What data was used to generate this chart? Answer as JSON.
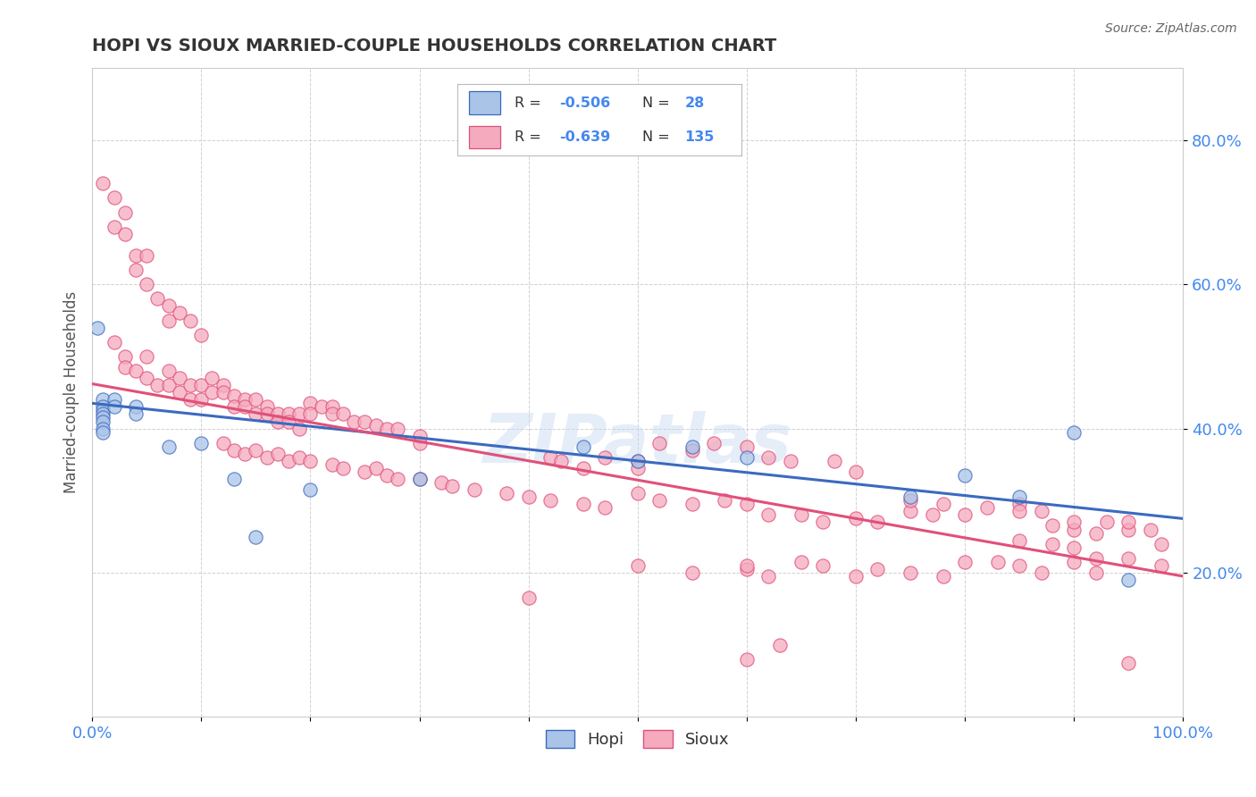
{
  "title": "HOPI VS SIOUX MARRIED-COUPLE HOUSEHOLDS CORRELATION CHART",
  "source": "Source: ZipAtlas.com",
  "ylabel": "Married-couple Households",
  "ytick_labels": [
    "20.0%",
    "40.0%",
    "60.0%",
    "80.0%"
  ],
  "ytick_values": [
    0.2,
    0.4,
    0.6,
    0.8
  ],
  "xlim": [
    0.0,
    1.0
  ],
  "ylim": [
    0.0,
    0.9
  ],
  "hopi_color": "#aac4e8",
  "sioux_color": "#f5aabe",
  "hopi_line_color": "#3b6abf",
  "sioux_line_color": "#e0507a",
  "legend_label_hopi_bottom": "Hopi",
  "legend_label_sioux_bottom": "Sioux",
  "watermark": "ZIPatlas",
  "background_color": "#ffffff",
  "grid_color": "#cccccc",
  "hopi_scatter": [
    [
      0.005,
      0.54
    ],
    [
      0.01,
      0.44
    ],
    [
      0.01,
      0.43
    ],
    [
      0.01,
      0.425
    ],
    [
      0.01,
      0.42
    ],
    [
      0.01,
      0.415
    ],
    [
      0.01,
      0.41
    ],
    [
      0.01,
      0.4
    ],
    [
      0.01,
      0.395
    ],
    [
      0.02,
      0.44
    ],
    [
      0.02,
      0.43
    ],
    [
      0.04,
      0.43
    ],
    [
      0.04,
      0.42
    ],
    [
      0.07,
      0.375
    ],
    [
      0.1,
      0.38
    ],
    [
      0.13,
      0.33
    ],
    [
      0.15,
      0.25
    ],
    [
      0.2,
      0.315
    ],
    [
      0.3,
      0.33
    ],
    [
      0.45,
      0.375
    ],
    [
      0.5,
      0.355
    ],
    [
      0.55,
      0.375
    ],
    [
      0.6,
      0.36
    ],
    [
      0.75,
      0.305
    ],
    [
      0.8,
      0.335
    ],
    [
      0.85,
      0.305
    ],
    [
      0.9,
      0.395
    ],
    [
      0.95,
      0.19
    ]
  ],
  "sioux_scatter": [
    [
      0.01,
      0.74
    ],
    [
      0.02,
      0.72
    ],
    [
      0.02,
      0.68
    ],
    [
      0.03,
      0.7
    ],
    [
      0.03,
      0.67
    ],
    [
      0.04,
      0.64
    ],
    [
      0.04,
      0.62
    ],
    [
      0.05,
      0.64
    ],
    [
      0.05,
      0.6
    ],
    [
      0.06,
      0.58
    ],
    [
      0.07,
      0.57
    ],
    [
      0.07,
      0.55
    ],
    [
      0.08,
      0.56
    ],
    [
      0.09,
      0.55
    ],
    [
      0.1,
      0.53
    ],
    [
      0.02,
      0.52
    ],
    [
      0.03,
      0.5
    ],
    [
      0.03,
      0.485
    ],
    [
      0.04,
      0.48
    ],
    [
      0.05,
      0.5
    ],
    [
      0.05,
      0.47
    ],
    [
      0.06,
      0.46
    ],
    [
      0.07,
      0.48
    ],
    [
      0.07,
      0.46
    ],
    [
      0.08,
      0.45
    ],
    [
      0.08,
      0.47
    ],
    [
      0.09,
      0.44
    ],
    [
      0.09,
      0.46
    ],
    [
      0.1,
      0.44
    ],
    [
      0.1,
      0.46
    ],
    [
      0.11,
      0.47
    ],
    [
      0.11,
      0.45
    ],
    [
      0.12,
      0.46
    ],
    [
      0.12,
      0.45
    ],
    [
      0.13,
      0.445
    ],
    [
      0.13,
      0.43
    ],
    [
      0.14,
      0.44
    ],
    [
      0.14,
      0.43
    ],
    [
      0.15,
      0.44
    ],
    [
      0.15,
      0.42
    ],
    [
      0.16,
      0.43
    ],
    [
      0.16,
      0.42
    ],
    [
      0.17,
      0.42
    ],
    [
      0.17,
      0.41
    ],
    [
      0.18,
      0.42
    ],
    [
      0.18,
      0.41
    ],
    [
      0.19,
      0.42
    ],
    [
      0.19,
      0.4
    ],
    [
      0.2,
      0.435
    ],
    [
      0.2,
      0.42
    ],
    [
      0.21,
      0.43
    ],
    [
      0.22,
      0.43
    ],
    [
      0.22,
      0.42
    ],
    [
      0.23,
      0.42
    ],
    [
      0.24,
      0.41
    ],
    [
      0.25,
      0.41
    ],
    [
      0.26,
      0.405
    ],
    [
      0.27,
      0.4
    ],
    [
      0.28,
      0.4
    ],
    [
      0.3,
      0.39
    ],
    [
      0.3,
      0.38
    ],
    [
      0.12,
      0.38
    ],
    [
      0.13,
      0.37
    ],
    [
      0.14,
      0.365
    ],
    [
      0.15,
      0.37
    ],
    [
      0.16,
      0.36
    ],
    [
      0.17,
      0.365
    ],
    [
      0.18,
      0.355
    ],
    [
      0.19,
      0.36
    ],
    [
      0.2,
      0.355
    ],
    [
      0.22,
      0.35
    ],
    [
      0.23,
      0.345
    ],
    [
      0.25,
      0.34
    ],
    [
      0.26,
      0.345
    ],
    [
      0.27,
      0.335
    ],
    [
      0.28,
      0.33
    ],
    [
      0.3,
      0.33
    ],
    [
      0.32,
      0.325
    ],
    [
      0.33,
      0.32
    ],
    [
      0.35,
      0.315
    ],
    [
      0.38,
      0.31
    ],
    [
      0.4,
      0.305
    ],
    [
      0.42,
      0.36
    ],
    [
      0.43,
      0.355
    ],
    [
      0.45,
      0.345
    ],
    [
      0.47,
      0.36
    ],
    [
      0.5,
      0.355
    ],
    [
      0.5,
      0.345
    ],
    [
      0.52,
      0.38
    ],
    [
      0.55,
      0.37
    ],
    [
      0.57,
      0.38
    ],
    [
      0.6,
      0.375
    ],
    [
      0.62,
      0.36
    ],
    [
      0.64,
      0.355
    ],
    [
      0.68,
      0.355
    ],
    [
      0.7,
      0.34
    ],
    [
      0.42,
      0.3
    ],
    [
      0.45,
      0.295
    ],
    [
      0.47,
      0.29
    ],
    [
      0.5,
      0.31
    ],
    [
      0.52,
      0.3
    ],
    [
      0.55,
      0.295
    ],
    [
      0.58,
      0.3
    ],
    [
      0.6,
      0.295
    ],
    [
      0.62,
      0.28
    ],
    [
      0.65,
      0.28
    ],
    [
      0.67,
      0.27
    ],
    [
      0.7,
      0.275
    ],
    [
      0.72,
      0.27
    ],
    [
      0.75,
      0.285
    ],
    [
      0.77,
      0.28
    ],
    [
      0.8,
      0.28
    ],
    [
      0.75,
      0.3
    ],
    [
      0.78,
      0.295
    ],
    [
      0.82,
      0.29
    ],
    [
      0.85,
      0.295
    ],
    [
      0.85,
      0.285
    ],
    [
      0.87,
      0.285
    ],
    [
      0.88,
      0.265
    ],
    [
      0.9,
      0.26
    ],
    [
      0.9,
      0.27
    ],
    [
      0.92,
      0.255
    ],
    [
      0.93,
      0.27
    ],
    [
      0.95,
      0.26
    ],
    [
      0.95,
      0.27
    ],
    [
      0.97,
      0.26
    ],
    [
      0.98,
      0.24
    ],
    [
      0.85,
      0.245
    ],
    [
      0.88,
      0.24
    ],
    [
      0.9,
      0.235
    ],
    [
      0.92,
      0.22
    ],
    [
      0.95,
      0.22
    ],
    [
      0.98,
      0.21
    ],
    [
      0.4,
      0.165
    ],
    [
      0.5,
      0.21
    ],
    [
      0.55,
      0.2
    ],
    [
      0.6,
      0.205
    ],
    [
      0.6,
      0.21
    ],
    [
      0.62,
      0.195
    ],
    [
      0.65,
      0.215
    ],
    [
      0.67,
      0.21
    ],
    [
      0.7,
      0.195
    ],
    [
      0.72,
      0.205
    ],
    [
      0.75,
      0.2
    ],
    [
      0.78,
      0.195
    ],
    [
      0.8,
      0.215
    ],
    [
      0.83,
      0.215
    ],
    [
      0.85,
      0.21
    ],
    [
      0.87,
      0.2
    ],
    [
      0.9,
      0.215
    ],
    [
      0.92,
      0.2
    ],
    [
      0.6,
      0.08
    ],
    [
      0.63,
      0.1
    ],
    [
      0.95,
      0.075
    ]
  ]
}
